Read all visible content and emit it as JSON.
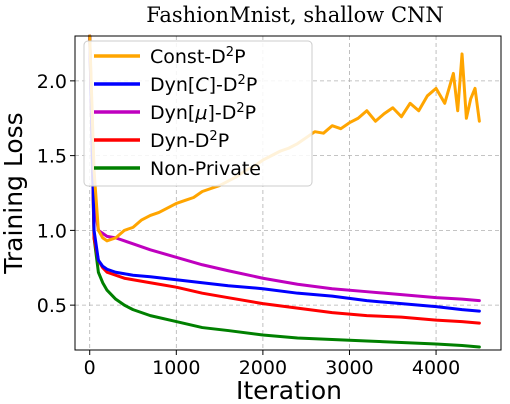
{
  "chart_data": {
    "type": "line",
    "title": "FashionMnist, shallow CNN",
    "xlabel": "Iteration",
    "ylabel": "Training Loss",
    "xlim": [
      -170,
      4750
    ],
    "ylim": [
      0.2,
      2.3
    ],
    "xticks": [
      0,
      1000,
      2000,
      3000,
      4000
    ],
    "xtick_labels": [
      "0",
      "1000",
      "2000",
      "3000",
      "4000"
    ],
    "yticks": [
      0.5,
      1.0,
      1.5,
      2.0
    ],
    "ytick_labels": [
      "0.5",
      "1.0",
      "1.5",
      "2.0"
    ],
    "grid": true,
    "legend_position": "upper-left",
    "series": [
      {
        "name": "Const-D2P",
        "label_main": "Const-D",
        "label_sup": "2",
        "label_tail": "P",
        "color": "#ffa500",
        "x": [
          0,
          50,
          100,
          150,
          200,
          300,
          400,
          500,
          600,
          700,
          800,
          900,
          1000,
          1100,
          1200,
          1300,
          1400,
          1500,
          1600,
          1700,
          1800,
          1900,
          2000,
          2100,
          2200,
          2300,
          2400,
          2500,
          2600,
          2700,
          2800,
          2900,
          3000,
          3100,
          3200,
          3300,
          3400,
          3500,
          3600,
          3700,
          3800,
          3900,
          4000,
          4100,
          4200,
          4250,
          4300,
          4350,
          4400,
          4450,
          4500
        ],
        "y": [
          2.3,
          1.4,
          1.0,
          0.95,
          0.93,
          0.95,
          1.0,
          1.02,
          1.07,
          1.1,
          1.12,
          1.15,
          1.18,
          1.2,
          1.22,
          1.26,
          1.28,
          1.3,
          1.33,
          1.36,
          1.4,
          1.43,
          1.47,
          1.5,
          1.53,
          1.55,
          1.58,
          1.62,
          1.66,
          1.65,
          1.7,
          1.68,
          1.72,
          1.75,
          1.8,
          1.73,
          1.78,
          1.82,
          1.76,
          1.85,
          1.8,
          1.9,
          1.95,
          1.85,
          2.05,
          1.8,
          2.18,
          1.75,
          1.88,
          1.95,
          1.73
        ]
      },
      {
        "name": "Dyn[C]-D2P",
        "label_main": "Dyn[",
        "label_italic": "C",
        "label_mid": "]-D",
        "label_sup": "2",
        "label_tail": "P",
        "color": "#0000ff",
        "x": [
          0,
          50,
          100,
          150,
          200,
          300,
          400,
          500,
          700,
          1000,
          1300,
          1600,
          2000,
          2400,
          2800,
          3200,
          3600,
          4000,
          4300,
          4500
        ],
        "y": [
          2.3,
          1.0,
          0.8,
          0.76,
          0.74,
          0.72,
          0.71,
          0.7,
          0.69,
          0.67,
          0.65,
          0.63,
          0.61,
          0.58,
          0.56,
          0.53,
          0.51,
          0.49,
          0.47,
          0.46
        ]
      },
      {
        "name": "Dyn[μ]-D2P",
        "label_main": "Dyn[",
        "label_italic": "μ",
        "label_mid": "]-D",
        "label_sup": "2",
        "label_tail": "P",
        "color": "#bf00bf",
        "x": [
          0,
          50,
          100,
          150,
          200,
          300,
          400,
          500,
          700,
          1000,
          1300,
          1600,
          2000,
          2400,
          2800,
          3200,
          3600,
          4000,
          4300,
          4500
        ],
        "y": [
          2.3,
          1.2,
          1.0,
          0.98,
          0.96,
          0.95,
          0.93,
          0.91,
          0.87,
          0.82,
          0.77,
          0.73,
          0.68,
          0.64,
          0.61,
          0.59,
          0.57,
          0.55,
          0.54,
          0.53
        ]
      },
      {
        "name": "Dyn-D2P",
        "label_main": "Dyn-D",
        "label_sup": "2",
        "label_tail": "P",
        "color": "#ff0000",
        "x": [
          0,
          50,
          100,
          150,
          200,
          300,
          400,
          500,
          700,
          1000,
          1300,
          1600,
          2000,
          2400,
          2800,
          3200,
          3600,
          4000,
          4300,
          4500
        ],
        "y": [
          2.3,
          0.95,
          0.8,
          0.75,
          0.72,
          0.7,
          0.68,
          0.67,
          0.65,
          0.62,
          0.58,
          0.55,
          0.51,
          0.48,
          0.45,
          0.43,
          0.42,
          0.4,
          0.39,
          0.38
        ]
      },
      {
        "name": "Non-Private",
        "label_main": "Non-Private",
        "color": "#008000",
        "x": [
          0,
          50,
          100,
          150,
          200,
          300,
          400,
          500,
          700,
          1000,
          1300,
          1600,
          2000,
          2400,
          2800,
          3200,
          3600,
          4000,
          4300,
          4500
        ],
        "y": [
          2.3,
          0.95,
          0.72,
          0.65,
          0.6,
          0.54,
          0.5,
          0.47,
          0.43,
          0.39,
          0.35,
          0.33,
          0.3,
          0.28,
          0.27,
          0.26,
          0.25,
          0.24,
          0.23,
          0.22
        ]
      }
    ]
  }
}
